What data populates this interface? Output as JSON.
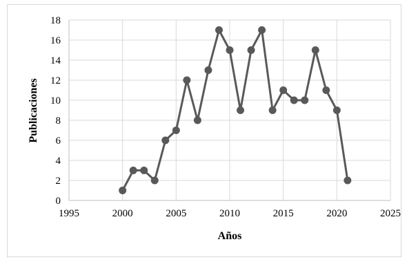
{
  "chart_data": {
    "type": "line",
    "title": "",
    "xlabel": "Años",
    "ylabel": "Publicaciones",
    "xlim": [
      1995,
      2025
    ],
    "ylim": [
      0,
      18
    ],
    "x_ticks": [
      1995,
      2000,
      2005,
      2010,
      2015,
      2020,
      2025
    ],
    "y_ticks": [
      0,
      2,
      4,
      6,
      8,
      10,
      12,
      14,
      16,
      18
    ],
    "grid": true,
    "legend": "none",
    "series": [
      {
        "color": "#595959",
        "x": [
          2000,
          2001,
          2002,
          2003,
          2004,
          2005,
          2006,
          2007,
          2008,
          2009,
          2010,
          2011,
          2012,
          2013,
          2014,
          2015,
          2016,
          2017,
          2018,
          2019,
          2020,
          2021
        ],
        "y": [
          1,
          3,
          3,
          2,
          6,
          7,
          12,
          8,
          13,
          17,
          15,
          9,
          15,
          17,
          9,
          11,
          10,
          10,
          15,
          11,
          9,
          2
        ]
      }
    ]
  }
}
